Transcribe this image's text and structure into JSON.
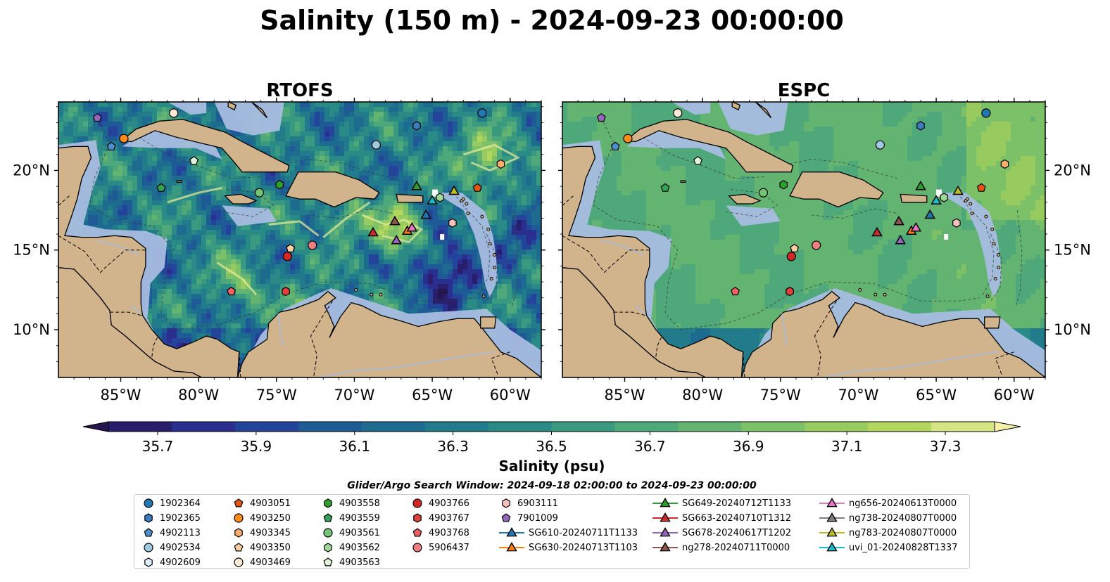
{
  "title": "Salinity (150 m) - 2024-09-23 00:00:00",
  "panels": [
    {
      "name": "RTOFS",
      "variant": "rtofs"
    },
    {
      "name": "ESPC",
      "variant": "espc"
    }
  ],
  "lon_ticks": [
    {
      "lon": -85,
      "label": "85°W"
    },
    {
      "lon": -80,
      "label": "80°W"
    },
    {
      "lon": -75,
      "label": "75°W"
    },
    {
      "lon": -70,
      "label": "70°W"
    },
    {
      "lon": -65,
      "label": "65°W"
    },
    {
      "lon": -60,
      "label": "60°W"
    }
  ],
  "lat_ticks": [
    {
      "lat": 20,
      "label": "20°N"
    },
    {
      "lat": 15,
      "label": "15°N"
    },
    {
      "lat": 10,
      "label": "10°N"
    }
  ],
  "extent": {
    "lon_min": -89,
    "lon_max": -58,
    "lat_min": 7,
    "lat_max": 24.3
  },
  "colorbar": {
    "label": "Salinity (psu)",
    "min": 35.6,
    "max": 37.4,
    "ticks": [
      "35.7",
      "35.9",
      "36.1",
      "36.3",
      "36.5",
      "36.7",
      "36.9",
      "37.1",
      "37.3"
    ],
    "colors": [
      "#281e6b",
      "#2a2e8e",
      "#23449a",
      "#1d5a96",
      "#1d6b8f",
      "#217b8a",
      "#2a8a86",
      "#3a9a80",
      "#4ea879",
      "#63b471",
      "#7cc068",
      "#97cb5f",
      "#b3d65e",
      "#d5e583"
    ],
    "under_color": "#25164f",
    "over_color": "#f5f0a8"
  },
  "search_window": "Glider/Argo Search Window: 2024-09-18 02:00:00 to 2024-09-23 00:00:00",
  "colors": {
    "land": "#d2b48c",
    "shelf": "#a8bde0",
    "deep_blue": "#281e6b",
    "green_mid": "#4ea879"
  },
  "legend_items": [
    {
      "id": "1902364",
      "marker": "circle",
      "color": "#1f77b4"
    },
    {
      "id": "1902365",
      "marker": "hexagon",
      "color": "#3a7dc0"
    },
    {
      "id": "4902113",
      "marker": "pentagon",
      "color": "#4a90d0"
    },
    {
      "id": "4902534",
      "marker": "circle",
      "color": "#9ecae1"
    },
    {
      "id": "4902609",
      "marker": "hexagon",
      "color": "#ddeeff"
    },
    {
      "id": "4903051",
      "marker": "pentagon",
      "color": "#e6550d"
    },
    {
      "id": "4903250",
      "marker": "circle",
      "color": "#ff8c1a"
    },
    {
      "id": "4903345",
      "marker": "hexagon",
      "color": "#fdae6b"
    },
    {
      "id": "4903350",
      "marker": "pentagon",
      "color": "#fdd0a2"
    },
    {
      "id": "4903469",
      "marker": "circle",
      "color": "#feead4"
    },
    {
      "id": "4903558",
      "marker": "hexagon",
      "color": "#2ca02c"
    },
    {
      "id": "4903559",
      "marker": "pentagon",
      "color": "#31a354"
    },
    {
      "id": "4903561",
      "marker": "circle",
      "color": "#74c476"
    },
    {
      "id": "4903562",
      "marker": "hexagon",
      "color": "#a1d99b"
    },
    {
      "id": "4903563",
      "marker": "pentagon",
      "color": "#e0f5d8"
    },
    {
      "id": "4903766",
      "marker": "circle",
      "color": "#d62728"
    },
    {
      "id": "4903767",
      "marker": "hexagon",
      "color": "#e0403a"
    },
    {
      "id": "4903768",
      "marker": "pentagon",
      "color": "#f06060"
    },
    {
      "id": "5906437",
      "marker": "circle",
      "color": "#f08080"
    },
    {
      "id": "6903111",
      "marker": "hexagon",
      "color": "#f9c0c0"
    },
    {
      "id": "7901009",
      "marker": "pentagon",
      "color": "#9467bd"
    },
    {
      "id": "SG610-20240711T1133",
      "marker": "triangle",
      "color": "#1f77b4",
      "line": true
    },
    {
      "id": "SG630-20240713T1103",
      "marker": "triangle",
      "color": "#ff7f0e",
      "line": true
    },
    {
      "id": "SG649-20240712T1133",
      "marker": "triangle",
      "color": "#2ca02c",
      "line": true
    },
    {
      "id": "SG663-20240710T1312",
      "marker": "triangle",
      "color": "#d62728",
      "line": true
    },
    {
      "id": "SG678-20240617T1202",
      "marker": "triangle",
      "color": "#9467bd",
      "line": true
    },
    {
      "id": "ng278-20240711T0000",
      "marker": "triangle",
      "color": "#8c564b",
      "line": true
    },
    {
      "id": "ng656-20240613T0000",
      "marker": "triangle",
      "color": "#e377c2",
      "line": true
    },
    {
      "id": "ng738-20240807T0000",
      "marker": "triangle",
      "color": "#7f7f7f",
      "line": true
    },
    {
      "id": "ng783-20240807T0000",
      "marker": "triangle",
      "color": "#bcbd22",
      "line": true
    },
    {
      "id": "uvi_01-20240828T1337",
      "marker": "triangle",
      "color": "#17becf",
      "line": true
    }
  ],
  "map_markers": [
    {
      "id": "7901009",
      "lon": -86.5,
      "lat": 23.3
    },
    {
      "id": "4903469",
      "lon": -81.6,
      "lat": 23.6
    },
    {
      "id": "4903250",
      "lon": -84.8,
      "lat": 22.0
    },
    {
      "id": "4902113",
      "lon": -85.6,
      "lat": 21.5
    },
    {
      "id": "4903563",
      "lon": -80.3,
      "lat": 20.6
    },
    {
      "id": "4903559",
      "lon": -82.4,
      "lat": 18.9
    },
    {
      "id": "4903561",
      "lon": -76.1,
      "lat": 18.6
    },
    {
      "id": "4903558",
      "lon": -74.8,
      "lat": 19.1
    },
    {
      "id": "4902534",
      "lon": -68.6,
      "lat": 21.6
    },
    {
      "id": "1902365",
      "lon": -66.0,
      "lat": 22.8
    },
    {
      "id": "1902364",
      "lon": -61.8,
      "lat": 23.6
    },
    {
      "id": "4903345",
      "lon": -60.6,
      "lat": 20.4
    },
    {
      "id": "4903051",
      "lon": -62.1,
      "lat": 18.9
    },
    {
      "id": "6903111",
      "lon": -63.7,
      "lat": 16.7
    },
    {
      "id": "4903350",
      "lon": -74.1,
      "lat": 15.1
    },
    {
      "id": "5906437",
      "lon": -72.7,
      "lat": 15.3
    },
    {
      "id": "4903766",
      "lon": -74.3,
      "lat": 14.6
    },
    {
      "id": "4903768",
      "lon": -77.9,
      "lat": 12.4
    },
    {
      "id": "4903767",
      "lon": -74.4,
      "lat": 12.4
    },
    {
      "id": "SG649-20240712T1133",
      "lon": -66.0,
      "lat": 19.0
    },
    {
      "id": "ng783-20240807T0000",
      "lon": -63.6,
      "lat": 18.7
    },
    {
      "id": "uvi_01-20240828T1337",
      "lon": -65.0,
      "lat": 18.1
    },
    {
      "id": "SG610-20240711T1133",
      "lon": -65.4,
      "lat": 17.2
    },
    {
      "id": "SG663-20240710T1312",
      "lon": -68.8,
      "lat": 16.1
    },
    {
      "id": "ng278-20240711T0000",
      "lon": -67.4,
      "lat": 16.8
    },
    {
      "id": "SG678-20240617T1202",
      "lon": -67.3,
      "lat": 15.6
    },
    {
      "id": "SG630-20240713T1103",
      "lon": -66.6,
      "lat": 16.2
    },
    {
      "id": "ng656-20240613T0000",
      "lon": -66.3,
      "lat": 16.4
    },
    {
      "id": "4903562",
      "lon": -64.5,
      "lat": 18.3
    }
  ]
}
